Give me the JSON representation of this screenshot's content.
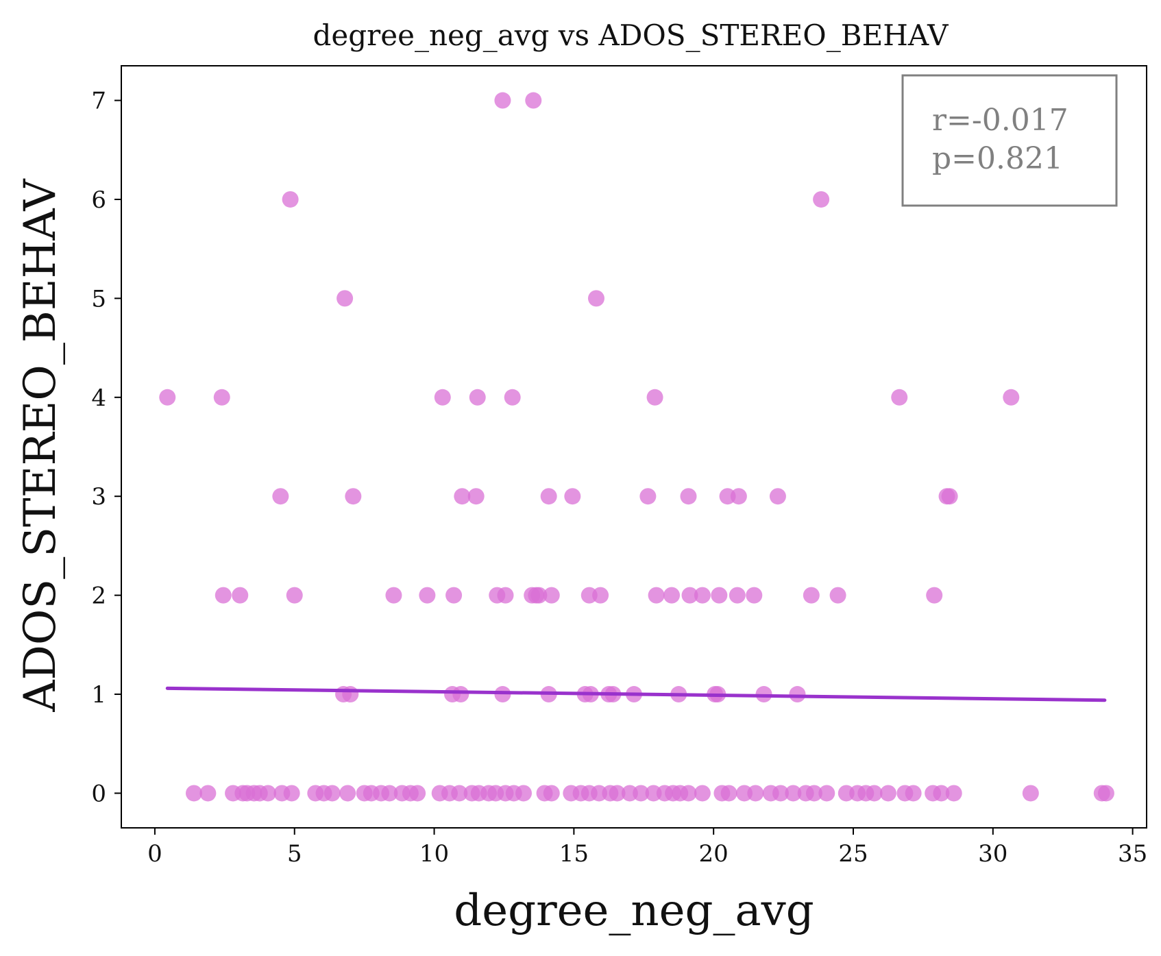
{
  "chart_data": {
    "type": "scatter",
    "title": "degree_neg_avg vs ADOS_STEREO_BEHAV",
    "xlabel": "degree_neg_avg",
    "ylabel": "ADOS_STEREO_BEHAV",
    "xlim": [
      -1.2,
      35.5
    ],
    "ylim": [
      -0.35,
      7.35
    ],
    "xticks": [
      0,
      5,
      10,
      15,
      20,
      25,
      30,
      35
    ],
    "yticks": [
      0,
      1,
      2,
      3,
      4,
      5,
      6,
      7
    ],
    "grid": false,
    "annotation": {
      "r_text": "r=-0.017",
      "p_text": "p=0.821",
      "placement": "top-right"
    },
    "colors": {
      "points": "#DA70D6",
      "fit_line": "#9932CC",
      "annotation_text": "#808080",
      "annotation_border": "#808080"
    },
    "fit_line": {
      "x": [
        0.45,
        34.0
      ],
      "y": [
        1.06,
        0.94
      ]
    },
    "points": [
      [
        0.45,
        4
      ],
      [
        2.4,
        4
      ],
      [
        10.3,
        4
      ],
      [
        11.55,
        4
      ],
      [
        12.8,
        4
      ],
      [
        17.9,
        4
      ],
      [
        26.65,
        4
      ],
      [
        30.65,
        4
      ],
      [
        4.85,
        6
      ],
      [
        23.85,
        6
      ],
      [
        12.45,
        7
      ],
      [
        13.55,
        7
      ],
      [
        6.8,
        5
      ],
      [
        15.8,
        5
      ],
      [
        4.5,
        3
      ],
      [
        7.1,
        3
      ],
      [
        11,
        3
      ],
      [
        11.5,
        3
      ],
      [
        14.1,
        3
      ],
      [
        14.95,
        3
      ],
      [
        17.65,
        3
      ],
      [
        19.1,
        3
      ],
      [
        20.5,
        3
      ],
      [
        20.9,
        3
      ],
      [
        22.3,
        3
      ],
      [
        28.35,
        3
      ],
      [
        28.45,
        3
      ],
      [
        2.45,
        2
      ],
      [
        3.05,
        2
      ],
      [
        5.0,
        2
      ],
      [
        8.55,
        2
      ],
      [
        9.75,
        2
      ],
      [
        10.7,
        2
      ],
      [
        12.25,
        2
      ],
      [
        12.55,
        2
      ],
      [
        13.5,
        2
      ],
      [
        13.65,
        2
      ],
      [
        13.75,
        2
      ],
      [
        14.2,
        2
      ],
      [
        15.55,
        2
      ],
      [
        15.95,
        2
      ],
      [
        17.95,
        2
      ],
      [
        18.5,
        2
      ],
      [
        19.15,
        2
      ],
      [
        19.6,
        2
      ],
      [
        20.2,
        2
      ],
      [
        20.85,
        2
      ],
      [
        21.45,
        2
      ],
      [
        23.5,
        2
      ],
      [
        24.45,
        2
      ],
      [
        27.9,
        2
      ],
      [
        6.75,
        1
      ],
      [
        7.0,
        1
      ],
      [
        10.65,
        1
      ],
      [
        10.95,
        1
      ],
      [
        12.45,
        1
      ],
      [
        14.1,
        1
      ],
      [
        15.4,
        1
      ],
      [
        15.6,
        1
      ],
      [
        16.25,
        1
      ],
      [
        16.4,
        1
      ],
      [
        17.15,
        1
      ],
      [
        18.75,
        1
      ],
      [
        20.05,
        1
      ],
      [
        20.15,
        1
      ],
      [
        21.8,
        1
      ],
      [
        23.0,
        1
      ],
      [
        1.4,
        0
      ],
      [
        1.9,
        0
      ],
      [
        2.8,
        0
      ],
      [
        3.15,
        0
      ],
      [
        3.3,
        0
      ],
      [
        3.55,
        0
      ],
      [
        3.75,
        0
      ],
      [
        4.05,
        0
      ],
      [
        4.55,
        0
      ],
      [
        4.9,
        0
      ],
      [
        5.75,
        0
      ],
      [
        6.05,
        0
      ],
      [
        6.35,
        0
      ],
      [
        6.9,
        0
      ],
      [
        7.5,
        0
      ],
      [
        7.75,
        0
      ],
      [
        8.1,
        0
      ],
      [
        8.4,
        0
      ],
      [
        8.85,
        0
      ],
      [
        9.15,
        0
      ],
      [
        9.4,
        0
      ],
      [
        10.2,
        0
      ],
      [
        10.55,
        0
      ],
      [
        10.9,
        0
      ],
      [
        11.35,
        0
      ],
      [
        11.6,
        0
      ],
      [
        11.95,
        0
      ],
      [
        12.2,
        0
      ],
      [
        12.55,
        0
      ],
      [
        12.85,
        0
      ],
      [
        13.2,
        0
      ],
      [
        13.95,
        0
      ],
      [
        14.2,
        0
      ],
      [
        14.9,
        0
      ],
      [
        15.25,
        0
      ],
      [
        15.55,
        0
      ],
      [
        15.9,
        0
      ],
      [
        16.3,
        0
      ],
      [
        16.55,
        0
      ],
      [
        17.0,
        0
      ],
      [
        17.4,
        0
      ],
      [
        17.85,
        0
      ],
      [
        18.25,
        0
      ],
      [
        18.55,
        0
      ],
      [
        18.8,
        0
      ],
      [
        19.1,
        0
      ],
      [
        19.6,
        0
      ],
      [
        20.3,
        0
      ],
      [
        20.55,
        0
      ],
      [
        21.1,
        0
      ],
      [
        21.5,
        0
      ],
      [
        22.05,
        0
      ],
      [
        22.4,
        0
      ],
      [
        22.85,
        0
      ],
      [
        23.3,
        0
      ],
      [
        23.6,
        0
      ],
      [
        24.05,
        0
      ],
      [
        24.75,
        0
      ],
      [
        25.15,
        0
      ],
      [
        25.45,
        0
      ],
      [
        25.75,
        0
      ],
      [
        26.25,
        0
      ],
      [
        26.85,
        0
      ],
      [
        27.15,
        0
      ],
      [
        27.85,
        0
      ],
      [
        28.15,
        0
      ],
      [
        28.6,
        0
      ],
      [
        31.35,
        0
      ],
      [
        33.9,
        0
      ],
      [
        34.05,
        0
      ]
    ]
  }
}
